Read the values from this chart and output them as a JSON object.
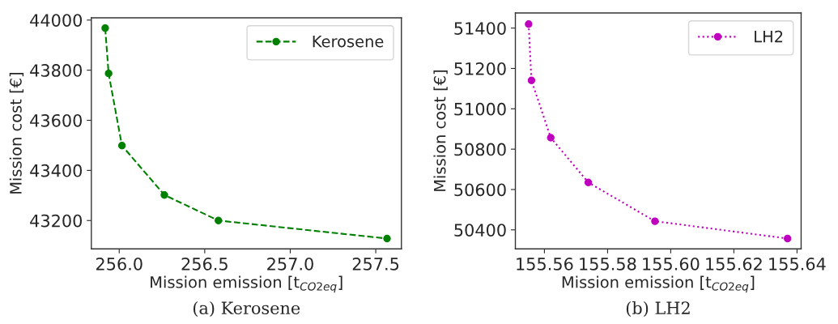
{
  "chart_data": [
    {
      "type": "line",
      "xlabel": "Mission emission [t$_{CO2eq}$]",
      "ylabel": "Mission cost [€]",
      "annotations": [
        "(a) Kerosene"
      ],
      "marker": "circle",
      "line_style": "dashed",
      "legend": "top right",
      "series": [
        {
          "name": "Kerosene",
          "color": "#008000",
          "x": [
            255.918,
            255.938,
            256.016,
            256.264,
            256.58,
            257.566
          ],
          "values": [
            43968,
            43787,
            43499,
            43302,
            43200,
            43128
          ]
        }
      ],
      "xlim": [
        255.837,
        257.65
      ],
      "ylim": [
        43087,
        44009
      ],
      "xticks": [
        {
          "value": 256,
          "label": "256.0"
        },
        256.5,
        {
          "value": 257,
          "label": "257.0"
        },
        257.5
      ],
      "yticks": [
        43200,
        43400,
        43600,
        43800,
        44000
      ]
    },
    {
      "type": "line",
      "xlabel": "Mission emission [t$_{CO2eq}$]",
      "ylabel": "Mission cost [€]",
      "annotations": [
        "(b) LH2"
      ],
      "marker": "circle",
      "line_style": "dotted",
      "legend": "top right",
      "series": [
        {
          "name": "LH2",
          "color": "#bf00bf",
          "x": [
            155.555,
            155.5559,
            155.562,
            155.5739,
            155.595,
            155.637
          ],
          "values": [
            51420,
            51141,
            50857,
            50635,
            50443,
            50357
          ]
        }
      ],
      "xlim": [
        155.5508,
        155.6413
      ],
      "ylim": [
        50306,
        51475
      ],
      "xticks": [
        155.56,
        155.58,
        {
          "value": 155.6,
          "label": "155.60"
        },
        155.62,
        155.64
      ],
      "yticks": [
        50400,
        50600,
        50800,
        51000,
        51200,
        51400
      ]
    }
  ]
}
